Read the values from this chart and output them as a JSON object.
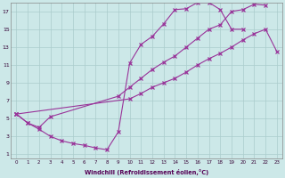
{
  "bg_color": "#cce8e8",
  "grid_color": "#aacccc",
  "line_color": "#993399",
  "xlim": [
    -0.5,
    23.5
  ],
  "ylim": [
    0.5,
    18.0
  ],
  "xticks": [
    0,
    1,
    2,
    3,
    4,
    5,
    6,
    7,
    8,
    9,
    10,
    11,
    12,
    13,
    14,
    15,
    16,
    17,
    18,
    19,
    20,
    21,
    22,
    23
  ],
  "yticks": [
    1,
    3,
    5,
    7,
    9,
    11,
    13,
    15,
    17
  ],
  "xlabel": "Windchill (Refroidissement éolien,°C)",
  "line1_x": [
    0,
    1,
    2,
    3,
    4,
    5,
    6,
    7,
    8,
    9,
    10,
    11,
    12,
    13,
    14,
    15,
    16,
    17,
    18,
    19,
    20
  ],
  "line1_y": [
    5.5,
    4.5,
    3.8,
    3.0,
    2.5,
    2.2,
    2.0,
    1.7,
    1.5,
    3.5,
    11.2,
    13.3,
    14.2,
    15.6,
    17.2,
    17.3,
    18.0,
    18.0,
    17.2,
    15.0,
    15.0
  ],
  "line2_x": [
    0,
    1,
    2,
    3,
    9,
    10,
    11,
    12,
    13,
    14,
    15,
    16,
    17,
    18,
    19,
    20,
    21,
    22
  ],
  "line2_y": [
    5.5,
    4.5,
    4.0,
    5.2,
    7.5,
    8.5,
    9.5,
    10.5,
    11.3,
    12.0,
    13.0,
    14.0,
    15.0,
    15.5,
    17.0,
    17.2,
    17.8,
    17.7
  ],
  "line3_x": [
    0,
    10,
    11,
    12,
    13,
    14,
    15,
    16,
    17,
    18,
    19,
    20,
    21,
    22,
    23
  ],
  "line3_y": [
    5.5,
    7.2,
    7.8,
    8.5,
    9.0,
    9.5,
    10.2,
    11.0,
    11.7,
    12.3,
    13.0,
    13.8,
    14.5,
    15.0,
    12.5
  ]
}
